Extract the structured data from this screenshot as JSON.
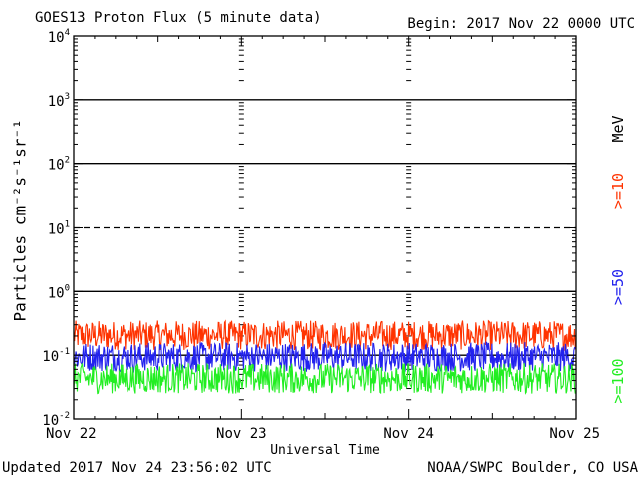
{
  "header": {
    "title": "GOES13 Proton Flux (5 minute data)",
    "begin": "Begin: 2017 Nov 22 0000 UTC"
  },
  "footer": {
    "updated": "Updated 2017 Nov 24 23:56:02 UTC",
    "credit": "NOAA/SWPC Boulder, CO USA"
  },
  "legend": {
    "unit": "MeV",
    "items": [
      {
        "label": ">=10",
        "color": "#ff3300"
      },
      {
        "label": ">=50",
        "color": "#2222ee"
      },
      {
        "label": ">=100",
        "color": "#22ee22"
      }
    ]
  },
  "chart_data": {
    "type": "line",
    "xlabel": "Universal Time",
    "ylabel": "Particles cm⁻²s⁻¹sr⁻¹",
    "yscale": "log",
    "ylim": [
      0.01,
      10000
    ],
    "y_ticks": [
      {
        "value": 0.01,
        "base": "10",
        "exp": "-2"
      },
      {
        "value": 0.1,
        "base": "10",
        "exp": "-1"
      },
      {
        "value": 1,
        "base": "10",
        "exp": "0"
      },
      {
        "value": 10,
        "base": "10",
        "exp": "1"
      },
      {
        "value": 100,
        "base": "10",
        "exp": "2"
      },
      {
        "value": 1000,
        "base": "10",
        "exp": "3"
      },
      {
        "value": 10000,
        "base": "10",
        "exp": "4"
      }
    ],
    "x_ticks": [
      "Nov 22",
      "Nov 23",
      "Nov 24",
      "Nov 25"
    ],
    "xlim": [
      "2017-11-22 00:00",
      "2017-11-25 00:00"
    ],
    "grid": true,
    "series": [
      {
        "name": ">=10",
        "color": "#ff3300",
        "level_low": 0.12,
        "level_high": 0.35
      },
      {
        "name": ">=50",
        "color": "#2222ee",
        "level_low": 0.055,
        "level_high": 0.16
      },
      {
        "name": ">=100",
        "color": "#22ee22",
        "level_low": 0.025,
        "level_high": 0.075
      }
    ]
  }
}
